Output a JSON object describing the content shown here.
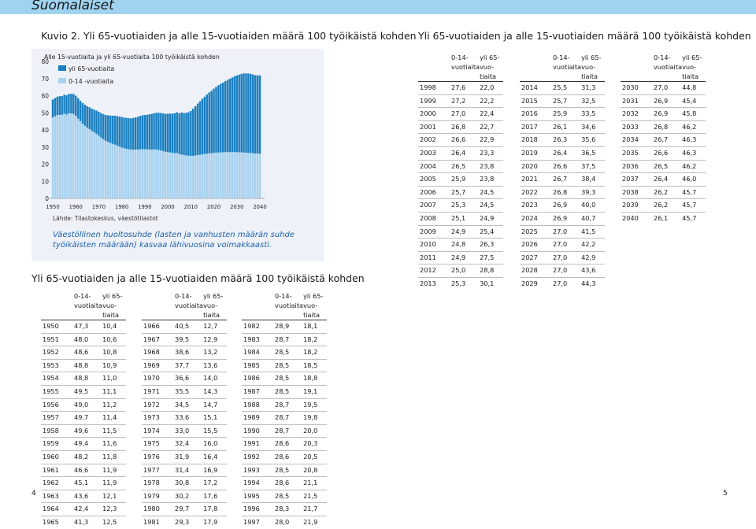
{
  "section_label": "Suomalaiset",
  "figure_title": "Kuvio 2.  Yli 65-vuotiaiden ja alle 15-vuotiaiden määrä 100 työikäistä kohden",
  "right_table_title": "Yli 65-vuotiaiden ja alle 15-vuotiaiden määrä 100 työikäistä kohden",
  "lower_table_title": "Yli 65-vuotiaiden ja alle 15-vuotiaiden määrä 100 työikäistä kohden",
  "source": "Lähde: Tilastokeskus, väestötilastot",
  "caption": "Väestöllinen huoltosuhde (lasten ja vanhusten määrän suhde työikäisten määrään) kasvaa lähivuosina voimakkaasti.",
  "table_headers": {
    "a_line1": "0-14-",
    "a_line2": "vuotiaita",
    "b_line1": "yli 65-vuo-",
    "b_line2": "tiaita"
  },
  "page_numbers": {
    "left": "4",
    "right": "5"
  },
  "colors": {
    "older": "#1a7fc0",
    "young": "#a8d2ef",
    "band": "#9fd3ef",
    "box": "#eef2f8",
    "caption": "#1f5fa8"
  },
  "chart_data": {
    "type": "bar",
    "title": "Alle 15-vuotiaita ja yli 65-vuotiaita 100 työikäistä kohden",
    "xlabel": "",
    "ylabel": "",
    "stacked": true,
    "ylim": [
      0,
      80
    ],
    "yticks": [
      "0",
      "10",
      "20",
      "30",
      "40",
      "50",
      "60",
      "70",
      "80"
    ],
    "xticks": [
      "1950",
      "1960",
      "1970",
      "1980",
      "1990",
      "2000",
      "2010",
      "2020",
      "2030",
      "2040"
    ],
    "legend_position": "top-left",
    "series_names": [
      "yli 65-vuotiaita",
      "0-14 -vuotiaita"
    ],
    "rows": [
      [
        "1950",
        "47,3",
        "10,4"
      ],
      [
        "1951",
        "48,0",
        "10,6"
      ],
      [
        "1952",
        "48,6",
        "10,8"
      ],
      [
        "1953",
        "48,8",
        "10,9"
      ],
      [
        "1954",
        "48,8",
        "11,0"
      ],
      [
        "1955",
        "49,5",
        "11,1"
      ],
      [
        "1956",
        "49,0",
        "11,2"
      ],
      [
        "1957",
        "49,7",
        "11,4"
      ],
      [
        "1958",
        "49,6",
        "11,5"
      ],
      [
        "1959",
        "49,4",
        "11,6"
      ],
      [
        "1960",
        "48,2",
        "11,8"
      ],
      [
        "1961",
        "46,6",
        "11,9"
      ],
      [
        "1962",
        "45,1",
        "11,9"
      ],
      [
        "1963",
        "43,6",
        "12,1"
      ],
      [
        "1964",
        "42,4",
        "12,3"
      ],
      [
        "1965",
        "41,3",
        "12,5"
      ],
      [
        "1966",
        "40,5",
        "12,7"
      ],
      [
        "1967",
        "39,5",
        "12,9"
      ],
      [
        "1968",
        "38,6",
        "13,2"
      ],
      [
        "1969",
        "37,7",
        "13,6"
      ],
      [
        "1970",
        "36,6",
        "14,0"
      ],
      [
        "1971",
        "35,5",
        "14,3"
      ],
      [
        "1972",
        "34,5",
        "14,7"
      ],
      [
        "1973",
        "33,6",
        "15,1"
      ],
      [
        "1974",
        "33,0",
        "15,5"
      ],
      [
        "1975",
        "32,4",
        "16,0"
      ],
      [
        "1976",
        "31,9",
        "16,4"
      ],
      [
        "1977",
        "31,4",
        "16,9"
      ],
      [
        "1978",
        "30,8",
        "17,2"
      ],
      [
        "1979",
        "30,2",
        "17,6"
      ],
      [
        "1980",
        "29,7",
        "17,8"
      ],
      [
        "1981",
        "29,3",
        "17,9"
      ],
      [
        "1982",
        "28,9",
        "18,1"
      ],
      [
        "1983",
        "28,7",
        "18,2"
      ],
      [
        "1984",
        "28,5",
        "18,2"
      ],
      [
        "1985",
        "28,5",
        "18,5"
      ],
      [
        "1986",
        "28,5",
        "18,8"
      ],
      [
        "1987",
        "28,5",
        "19,1"
      ],
      [
        "1988",
        "28,7",
        "19,5"
      ],
      [
        "1989",
        "28,7",
        "19,8"
      ],
      [
        "1990",
        "28,7",
        "20,0"
      ],
      [
        "1991",
        "28,6",
        "20,3"
      ],
      [
        "1992",
        "28,6",
        "20,5"
      ],
      [
        "1993",
        "28,5",
        "20,8"
      ],
      [
        "1994",
        "28,6",
        "21,1"
      ],
      [
        "1995",
        "28,5",
        "21,5"
      ],
      [
        "1996",
        "28,3",
        "21,7"
      ],
      [
        "1997",
        "28,0",
        "21,9"
      ],
      [
        "1998",
        "27,6",
        "22,0"
      ],
      [
        "1999",
        "27,2",
        "22,2"
      ],
      [
        "2000",
        "27,0",
        "22,4"
      ],
      [
        "2001",
        "26,8",
        "22,7"
      ],
      [
        "2002",
        "26,6",
        "22,9"
      ],
      [
        "2003",
        "26,4",
        "23,3"
      ],
      [
        "2004",
        "26,5",
        "23,8"
      ],
      [
        "2005",
        "25,9",
        "23,8"
      ],
      [
        "2006",
        "25,7",
        "24,5"
      ],
      [
        "2007",
        "25,3",
        "24,5"
      ],
      [
        "2008",
        "25,1",
        "24,9"
      ],
      [
        "2009",
        "24,9",
        "25,4"
      ],
      [
        "2010",
        "24,8",
        "26,3"
      ],
      [
        "2011",
        "24,9",
        "27,5"
      ],
      [
        "2012",
        "25,0",
        "28,8"
      ],
      [
        "2013",
        "25,3",
        "30,1"
      ],
      [
        "2014",
        "25,5",
        "31,3"
      ],
      [
        "2015",
        "25,7",
        "32,5"
      ],
      [
        "2016",
        "25,9",
        "33,5"
      ],
      [
        "2017",
        "26,1",
        "34,6"
      ],
      [
        "2018",
        "26,3",
        "35,6"
      ],
      [
        "2019",
        "26,4",
        "36,5"
      ],
      [
        "2020",
        "26,6",
        "37,5"
      ],
      [
        "2021",
        "26,7",
        "38,4"
      ],
      [
        "2022",
        "26,8",
        "39,3"
      ],
      [
        "2023",
        "26,9",
        "40,0"
      ],
      [
        "2024",
        "26,9",
        "40,7"
      ],
      [
        "2025",
        "27,0",
        "41,5"
      ],
      [
        "2026",
        "27,0",
        "42,2"
      ],
      [
        "2027",
        "27,0",
        "42,9"
      ],
      [
        "2028",
        "27,0",
        "43,6"
      ],
      [
        "2029",
        "27,0",
        "44,3"
      ],
      [
        "2030",
        "27,0",
        "44,8"
      ],
      [
        "2031",
        "26,9",
        "45,4"
      ],
      [
        "2032",
        "26,9",
        "45,8"
      ],
      [
        "2033",
        "26,8",
        "46,2"
      ],
      [
        "2034",
        "26,7",
        "46,3"
      ],
      [
        "2035",
        "26,6",
        "46,3"
      ],
      [
        "2036",
        "26,5",
        "46,2"
      ],
      [
        "2037",
        "26,4",
        "46,0"
      ],
      [
        "2038",
        "26,2",
        "45,7"
      ],
      [
        "2039",
        "26,2",
        "45,7"
      ],
      [
        "2040",
        "26,1",
        "45,7"
      ]
    ]
  }
}
